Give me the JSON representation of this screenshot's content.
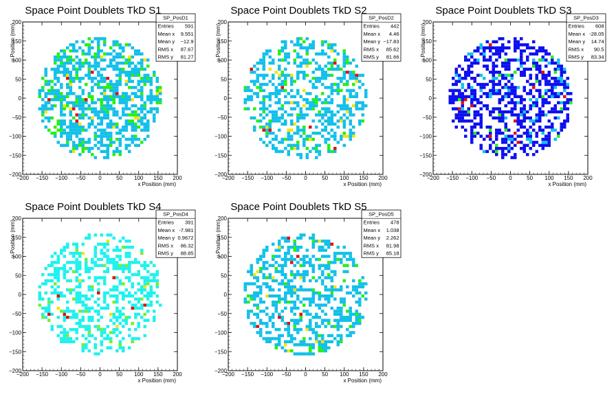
{
  "chart_data": [
    {
      "type": "heatmap",
      "title": "Space Point Doublets TkD S1",
      "xlabel": "x Position (mm)",
      "ylabel": "y Position (mm)",
      "xlim": [
        -200,
        200
      ],
      "ylim": [
        -200,
        200
      ],
      "xticks": [
        -200,
        -150,
        -100,
        -50,
        0,
        50,
        100,
        150,
        200
      ],
      "yticks": [
        -200,
        -150,
        -100,
        -50,
        0,
        50,
        100,
        150,
        200
      ],
      "stats": {
        "name": "SP_PosD1",
        "rows": [
          {
            "label": "Entries",
            "value": "591"
          },
          {
            "label": "Mean x",
            "value": "9.551"
          },
          {
            "label": "Mean y",
            "value": "−12.9"
          },
          {
            "label": "RMS x",
            "value": "87.67"
          },
          {
            "label": "RMS y",
            "value": "81.27"
          }
        ]
      },
      "palette": {
        "1": "#13c0ea",
        "2": "#25f10f",
        "3": "#f5e30a",
        "4": "#e01010"
      },
      "radius": 160,
      "fill_fraction": 0.55,
      "mix": {
        "2": 0.15,
        "3": 0.025,
        "4": 0.012
      },
      "seed": 11
    },
    {
      "type": "heatmap",
      "title": "Space Point Doublets TkD S2",
      "xlabel": "x Position (mm)",
      "ylabel": "y Position (mm)",
      "xlim": [
        -200,
        200
      ],
      "ylim": [
        -200,
        200
      ],
      "xticks": [
        -200,
        -150,
        -100,
        -50,
        0,
        50,
        100,
        150,
        200
      ],
      "yticks": [
        -200,
        -150,
        -100,
        -50,
        0,
        50,
        100,
        150,
        200
      ],
      "stats": {
        "name": "SP_PosD2",
        "rows": [
          {
            "label": "Entries",
            "value": "442"
          },
          {
            "label": "Mean x",
            "value": "4.46"
          },
          {
            "label": "Mean y",
            "value": "−17.83"
          },
          {
            "label": "RMS x",
            "value": "85.62"
          },
          {
            "label": "RMS y",
            "value": "81.66"
          }
        ]
      },
      "palette": {
        "1": "#13c0ea",
        "2": "#25f10f",
        "3": "#f5e30a",
        "4": "#e01010"
      },
      "radius": 160,
      "fill_fraction": 0.44,
      "mix": {
        "2": 0.11,
        "3": 0.03,
        "4": 0.012
      },
      "seed": 23
    },
    {
      "type": "heatmap",
      "title": "Space Point Doublets TkD S3",
      "xlabel": "x Position (mm)",
      "ylabel": "y Position (mm)",
      "xlim": [
        -200,
        200
      ],
      "ylim": [
        -200,
        200
      ],
      "xticks": [
        -200,
        -150,
        -100,
        -50,
        0,
        50,
        100,
        150,
        200
      ],
      "yticks": [
        -200,
        -150,
        -100,
        -50,
        0,
        50,
        100,
        150,
        200
      ],
      "stats": {
        "name": "SP_PosD3",
        "rows": [
          {
            "label": "Entries",
            "value": "608"
          },
          {
            "label": "Mean x",
            "value": "-28.05"
          },
          {
            "label": "Mean y",
            "value": "14.74"
          },
          {
            "label": "RMS x",
            "value": "90.5"
          },
          {
            "label": "RMS y",
            "value": "83.34"
          }
        ]
      },
      "palette": {
        "1": "#0d0ff0",
        "2": "#13c0ea",
        "3": "#25f10f",
        "4": "#e01010"
      },
      "radius": 160,
      "fill_fraction": 0.5,
      "mix": {
        "2": 0.13,
        "3": 0.035,
        "4": 0.012
      },
      "seed": 37
    },
    {
      "type": "heatmap",
      "title": "Space Point Doublets TkD S4",
      "xlabel": "x Position (mm)",
      "ylabel": "y Position (mm)",
      "xlim": [
        -200,
        200
      ],
      "ylim": [
        -200,
        200
      ],
      "xticks": [
        -200,
        -150,
        -100,
        -50,
        0,
        50,
        100,
        150,
        200
      ],
      "yticks": [
        -200,
        -150,
        -100,
        -50,
        0,
        50,
        100,
        150,
        200
      ],
      "stats": {
        "name": "SP_PosD4",
        "rows": [
          {
            "label": "Entries",
            "value": "391"
          },
          {
            "label": "Mean x",
            "value": "-7.981"
          },
          {
            "label": "Mean y",
            "value": "0.9672"
          },
          {
            "label": "RMS x",
            "value": "86.32"
          },
          {
            "label": "RMS y",
            "value": "88.85"
          }
        ]
      },
      "palette": {
        "1": "#1ef2ee",
        "2": "#74f02a",
        "3": "#f5e30a",
        "4": "#e01010"
      },
      "radius": 160,
      "fill_fraction": 0.4,
      "mix": {
        "2": 0.06,
        "3": 0.02,
        "4": 0.014
      },
      "seed": 51
    },
    {
      "type": "heatmap",
      "title": "Space Point Doublets TkD S5",
      "xlabel": "x Position (mm)",
      "ylabel": "y Position (mm)",
      "xlim": [
        -200,
        200
      ],
      "ylim": [
        -200,
        200
      ],
      "xticks": [
        -200,
        -150,
        -100,
        -50,
        0,
        50,
        100,
        150,
        200
      ],
      "yticks": [
        -200,
        -150,
        -100,
        -50,
        0,
        50,
        100,
        150,
        200
      ],
      "stats": {
        "name": "SP_PosD5",
        "rows": [
          {
            "label": "Entries",
            "value": "478"
          },
          {
            "label": "Mean x",
            "value": "1.038"
          },
          {
            "label": "Mean y",
            "value": "2.262"
          },
          {
            "label": "RMS x",
            "value": "81.98"
          },
          {
            "label": "RMS y",
            "value": "85.18"
          }
        ]
      },
      "palette": {
        "1": "#13c0ea",
        "2": "#25f10f",
        "3": "#f5e30a",
        "4": "#e01010"
      },
      "radius": 160,
      "fill_fraction": 0.46,
      "mix": {
        "2": 0.1,
        "3": 0.02,
        "4": 0.012
      },
      "seed": 67
    }
  ]
}
